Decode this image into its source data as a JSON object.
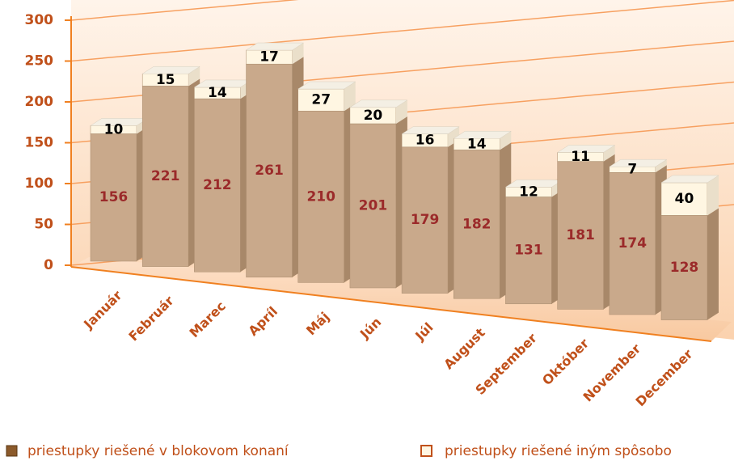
{
  "chart_data": {
    "type": "bar3d_stacked",
    "categories": [
      "Január",
      "Február",
      "Marec",
      "Apríl",
      "Máj",
      "Jún",
      "Júl",
      "August",
      "September",
      "Október",
      "November",
      "December"
    ],
    "series": [
      {
        "name": "priestupky riešené v blokovom konaní",
        "color": "#c9a98b",
        "values": [
          156,
          221,
          212,
          261,
          210,
          201,
          179,
          182,
          131,
          181,
          174,
          128
        ]
      },
      {
        "name": "priestupky riešené iným spôsobo",
        "color": "#fff6e2",
        "values": [
          10,
          15,
          14,
          17,
          27,
          20,
          16,
          14,
          12,
          11,
          7,
          40
        ]
      }
    ],
    "ylim": [
      0,
      300
    ],
    "yticks": [
      0,
      50,
      100,
      150,
      200,
      250,
      300
    ],
    "grid": true
  }
}
